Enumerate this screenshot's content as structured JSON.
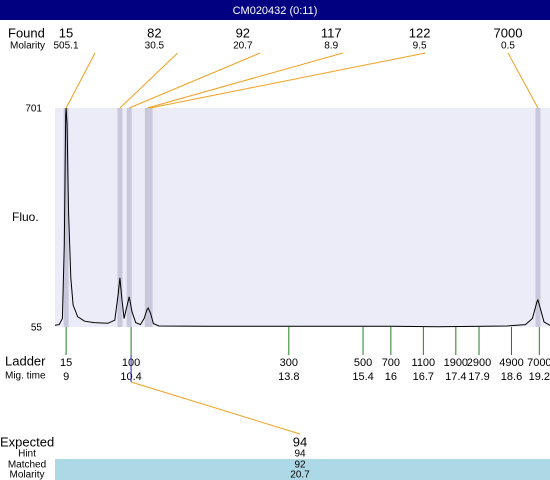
{
  "chart_data": {
    "type": "electropherogram",
    "title": "CM020432 (0:11)",
    "found_label": "Found",
    "molarity_label": "Molarity",
    "ylabel": "Fluo.",
    "ylim": [
      55,
      701
    ],
    "yticks": [
      701,
      55
    ],
    "xlim": [
      8.76,
      19.43
    ],
    "peaks": {
      "sizes": [
        15,
        82,
        92,
        117,
        122,
        7000
      ],
      "molarities": [
        505.1,
        30.5,
        20.7,
        8.9,
        9.5,
        0.5
      ],
      "times": [
        9.0,
        10.16,
        10.36,
        10.75,
        10.81,
        19.17
      ]
    },
    "ladder_label": "Ladder",
    "mig_time_label": "Mig. time",
    "ladder": {
      "sizes": [
        15,
        100,
        300,
        500,
        700,
        1100,
        1900,
        2900,
        4900,
        7000
      ],
      "mig_times": [
        9,
        10.4,
        13.8,
        15.4,
        16,
        16.7,
        17.4,
        17.9,
        18.6,
        19.2
      ]
    },
    "trace": {
      "x": [
        8.76,
        8.85,
        8.92,
        8.96,
        8.99,
        9.0,
        9.02,
        9.05,
        9.1,
        9.15,
        9.25,
        9.4,
        9.6,
        9.9,
        10.05,
        10.12,
        10.16,
        10.2,
        10.25,
        10.3,
        10.36,
        10.42,
        10.5,
        10.6,
        10.68,
        10.74,
        10.77,
        10.82,
        10.88,
        11.0,
        12,
        14,
        16,
        17,
        18.5,
        18.9,
        19.05,
        19.15,
        19.17,
        19.22,
        19.3,
        19.43
      ],
      "y": [
        60,
        62,
        80,
        300,
        680,
        701,
        650,
        400,
        200,
        120,
        85,
        72,
        68,
        66,
        75,
        150,
        200,
        140,
        80,
        110,
        144,
        100,
        68,
        62,
        80,
        105,
        111,
        95,
        65,
        58,
        57,
        57,
        57,
        56,
        58,
        62,
        80,
        130,
        135,
        110,
        70,
        60
      ]
    },
    "expected": {
      "expected_label": "Expected",
      "expected_value": 94,
      "hint_label": "Hint",
      "hint_value": 94,
      "matched_label": "Matched",
      "matched_value": 92,
      "molarity_label": "Molarity",
      "molarity_value": 20.7
    }
  }
}
